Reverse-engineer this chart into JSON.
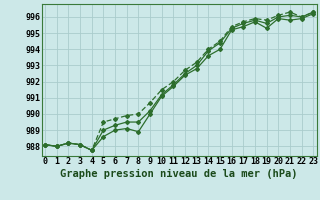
{
  "title": "Graphe pression niveau de la mer (hPa)",
  "x_values": [
    0,
    1,
    2,
    3,
    4,
    5,
    6,
    7,
    8,
    9,
    10,
    11,
    12,
    13,
    14,
    15,
    16,
    17,
    18,
    19,
    20,
    21,
    22,
    23
  ],
  "line1": [
    988.1,
    988.0,
    988.2,
    988.1,
    987.75,
    988.6,
    989.0,
    989.1,
    988.9,
    990.0,
    991.1,
    991.7,
    992.4,
    992.8,
    993.6,
    994.0,
    995.2,
    995.4,
    995.7,
    995.3,
    995.9,
    995.8,
    995.9,
    996.2
  ],
  "line2": [
    988.1,
    988.0,
    988.2,
    988.1,
    987.75,
    989.0,
    989.3,
    989.5,
    989.5,
    990.2,
    991.2,
    991.8,
    992.5,
    993.0,
    993.9,
    994.4,
    995.3,
    995.6,
    995.8,
    995.6,
    996.0,
    996.1,
    996.0,
    996.3
  ],
  "line3": [
    988.1,
    988.0,
    988.2,
    988.1,
    987.75,
    989.5,
    989.7,
    989.9,
    990.0,
    990.7,
    991.5,
    992.0,
    992.7,
    993.2,
    994.0,
    994.5,
    995.4,
    995.7,
    995.9,
    995.8,
    996.1,
    996.3,
    996.0,
    996.3
  ],
  "ylim": [
    987.4,
    996.8
  ],
  "yticks": [
    988,
    989,
    990,
    991,
    992,
    993,
    994,
    995,
    996
  ],
  "xlim": [
    -0.3,
    23.3
  ],
  "bg_color": "#cce8e8",
  "grid_color": "#aacccc",
  "line_color": "#2d6e2d",
  "marker_color": "#2d6e2d",
  "title_fontsize": 7.5,
  "tick_fontsize": 6.0
}
